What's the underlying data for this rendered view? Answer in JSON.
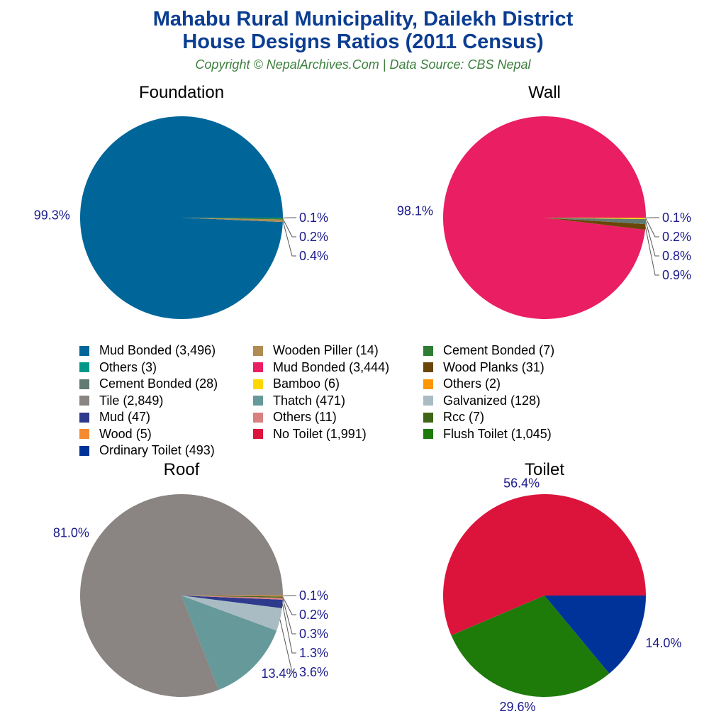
{
  "title_line1": "Mahabu Rural Municipality, Dailekh District",
  "title_line2": "House Designs Ratios (2011 Census)",
  "subtitle": "Copyright © NepalArchives.Com | Data Source: CBS Nepal",
  "chart_data": [
    {
      "type": "pie",
      "title": "Foundation",
      "direction": "counterclockwise from 3 o'clock",
      "slices": [
        {
          "name": "Mud Bonded",
          "value": 3496,
          "label": "99.3%",
          "color": "#006699"
        },
        {
          "name": "Wooden Piller",
          "value": 14,
          "label": "0.4%",
          "color": "#b08c52"
        },
        {
          "name": "Cement Bonded",
          "value": 7,
          "label": "0.2%",
          "color": "#2e7d32"
        },
        {
          "name": "Others",
          "value": 3,
          "label": "0.1%",
          "color": "#009688"
        }
      ]
    },
    {
      "type": "pie",
      "title": "Wall",
      "direction": "counterclockwise from 3 o'clock",
      "slices": [
        {
          "name": "Mud Bonded",
          "value": 3444,
          "label": "98.1%",
          "color": "#e91e63"
        },
        {
          "name": "Wood Planks",
          "value": 31,
          "label": "0.9%",
          "color": "#6b4507"
        },
        {
          "name": "Cement Bonded",
          "value": 28,
          "label": "0.8%",
          "color": "#617a72"
        },
        {
          "name": "Bamboo",
          "value": 6,
          "label": "0.2%",
          "color": "#ffd700"
        },
        {
          "name": "Others",
          "value": 2,
          "label": "0.1%",
          "color": "#ff9800"
        }
      ]
    },
    {
      "type": "pie",
      "title": "Roof",
      "direction": "counterclockwise from 3 o'clock",
      "slices": [
        {
          "name": "Tile",
          "value": 2849,
          "label": "81.0%",
          "color": "#8a8582"
        },
        {
          "name": "Thatch",
          "value": 471,
          "label": "13.4%",
          "color": "#669999"
        },
        {
          "name": "Galvanized",
          "value": 128,
          "label": "3.6%",
          "color": "#a9bcc4"
        },
        {
          "name": "Mud",
          "value": 47,
          "label": "1.3%",
          "color": "#2e3a8c"
        },
        {
          "name": "Others",
          "value": 11,
          "label": "0.3%",
          "color": "#d98080"
        },
        {
          "name": "Rcc",
          "value": 7,
          "label": "0.2%",
          "color": "#3f6618"
        },
        {
          "name": "Wood",
          "value": 5,
          "label": "0.1%",
          "color": "#f58a30"
        }
      ]
    },
    {
      "type": "pie",
      "title": "Toilet",
      "direction": "counterclockwise from 3 o'clock",
      "slices": [
        {
          "name": "No Toilet",
          "value": 1991,
          "label": "56.4%",
          "color": "#dc143c"
        },
        {
          "name": "Flush Toilet",
          "value": 1045,
          "label": "29.6%",
          "color": "#1e7b0a"
        },
        {
          "name": "Ordinary Toilet",
          "value": 493,
          "label": "14.0%",
          "color": "#003399"
        }
      ]
    }
  ],
  "legend": [
    {
      "label": "Mud Bonded (3,496)",
      "color": "#006699"
    },
    {
      "label": "Wooden Piller (14)",
      "color": "#b08c52"
    },
    {
      "label": "Cement Bonded (7)",
      "color": "#2e7d32"
    },
    {
      "label": "Others (3)",
      "color": "#009688"
    },
    {
      "label": "Mud Bonded (3,444)",
      "color": "#e91e63"
    },
    {
      "label": "Wood Planks (31)",
      "color": "#6b4507"
    },
    {
      "label": "Cement Bonded (28)",
      "color": "#617a72"
    },
    {
      "label": "Bamboo (6)",
      "color": "#ffd700"
    },
    {
      "label": "Others (2)",
      "color": "#ff9800"
    },
    {
      "label": "Tile (2,849)",
      "color": "#8a8582"
    },
    {
      "label": "Thatch (471)",
      "color": "#669999"
    },
    {
      "label": "Galvanized (128)",
      "color": "#a9bcc4"
    },
    {
      "label": "Mud (47)",
      "color": "#2e3a8c"
    },
    {
      "label": "Others (11)",
      "color": "#d98080"
    },
    {
      "label": "Rcc (7)",
      "color": "#3f6618"
    },
    {
      "label": "Wood (5)",
      "color": "#f58a30"
    },
    {
      "label": "No Toilet (1,991)",
      "color": "#dc143c"
    },
    {
      "label": "Flush Toilet (1,045)",
      "color": "#1e7b0a"
    },
    {
      "label": "Ordinary Toilet (493)",
      "color": "#003399"
    }
  ],
  "label_color": "#1a1a8c"
}
